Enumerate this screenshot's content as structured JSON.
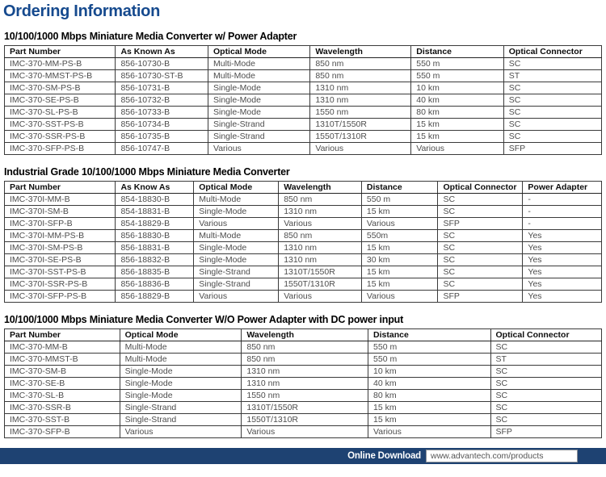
{
  "page": {
    "title": "Ordering Information",
    "accent_color": "#164a8e",
    "footer_bar_color": "#1e4272"
  },
  "tables": [
    {
      "heading": "10/100/1000 Mbps Miniature Media Converter w/ Power Adapter",
      "columns": [
        "Part Number",
        "As Known As",
        "Optical Mode",
        "Wavelength",
        "Distance",
        "Optical Connector"
      ],
      "rows": [
        [
          "IMC-370-MM-PS-B",
          "856-10730-B",
          "Multi-Mode",
          "850 nm",
          "550 m",
          "SC"
        ],
        [
          "IMC-370-MMST-PS-B",
          "856-10730-ST-B",
          "Multi-Mode",
          "850 nm",
          "550 m",
          "ST"
        ],
        [
          "IMC-370-SM-PS-B",
          "856-10731-B",
          "Single-Mode",
          "1310 nm",
          "10 km",
          "SC"
        ],
        [
          "IMC-370-SE-PS-B",
          "856-10732-B",
          "Single-Mode",
          "1310 nm",
          "40 km",
          "SC"
        ],
        [
          "IMC-370-SL-PS-B",
          "856-10733-B",
          "Single-Mode",
          "1550 nm",
          "80 km",
          "SC"
        ],
        [
          "IMC-370-SST-PS-B",
          "856-10734-B",
          "Single-Strand",
          "1310T/1550R",
          "15 km",
          "SC"
        ],
        [
          "IMC-370-SSR-PS-B",
          "856-10735-B",
          "Single-Strand",
          "1550T/1310R",
          "15 km",
          "SC"
        ],
        [
          "IMC-370-SFP-PS-B",
          "856-10747-B",
          "Various",
          "Various",
          "Various",
          "SFP"
        ]
      ]
    },
    {
      "heading": "Industrial Grade 10/100/1000 Mbps Miniature Media Converter",
      "columns": [
        "Part Number",
        "As Know As",
        "Optical Mode",
        "Wavelength",
        "Distance",
        "Optical Connector",
        "Power Adapter"
      ],
      "rows": [
        [
          "IMC-370I-MM-B",
          "854-18830-B",
          "Multi-Mode",
          "850 nm",
          "550 m",
          "SC",
          "-"
        ],
        [
          "IMC-370I-SM-B",
          "854-18831-B",
          "Single-Mode",
          "1310 nm",
          "15 km",
          "SC",
          "-"
        ],
        [
          "IMC-370I-SFP-B",
          "854-18829-B",
          "Various",
          "Various",
          "Various",
          "SFP",
          "-"
        ],
        [
          "IMC-370I-MM-PS-B",
          "856-18830-B",
          "Multi-Mode",
          "850 nm",
          "550m",
          "SC",
          "Yes"
        ],
        [
          "IMC-370I-SM-PS-B",
          "856-18831-B",
          "Single-Mode",
          "1310 nm",
          "15 km",
          "SC",
          "Yes"
        ],
        [
          "IMC-370I-SE-PS-B",
          "856-18832-B",
          "Single-Mode",
          "1310 nm",
          "30 km",
          "SC",
          "Yes"
        ],
        [
          "IMC-370I-SST-PS-B",
          "856-18835-B",
          "Single-Strand",
          "1310T/1550R",
          "15 km",
          "SC",
          "Yes"
        ],
        [
          "IMC-370I-SSR-PS-B",
          "856-18836-B",
          "Single-Strand",
          "1550T/1310R",
          "15 km",
          "SC",
          "Yes"
        ],
        [
          "IMC-370I-SFP-PS-B",
          "856-18829-B",
          "Various",
          "Various",
          "Various",
          "SFP",
          "Yes"
        ]
      ]
    },
    {
      "heading": "10/100/1000 Mbps Miniature Media Converter W/O Power Adapter with DC power input",
      "columns": [
        "Part Number",
        "Optical Mode",
        "Wavelength",
        "Distance",
        "Optical Connector"
      ],
      "rows": [
        [
          "IMC-370-MM-B",
          "Multi-Mode",
          "850 nm",
          "550 m",
          "SC"
        ],
        [
          "IMC-370-MMST-B",
          "Multi-Mode",
          "850 nm",
          "550 m",
          "ST"
        ],
        [
          "IMC-370-SM-B",
          "Single-Mode",
          "1310 nm",
          "10 km",
          "SC"
        ],
        [
          "IMC-370-SE-B",
          "Single-Mode",
          "1310 nm",
          "40 km",
          "SC"
        ],
        [
          "IMC-370-SL-B",
          "Single-Mode",
          "1550 nm",
          "80 km",
          "SC"
        ],
        [
          "IMC-370-SSR-B",
          "Single-Strand",
          "1310T/1550R",
          "15 km",
          "SC"
        ],
        [
          "IMC-370-SST-B",
          "Single-Strand",
          "1550T/1310R",
          "15 km",
          "SC"
        ],
        [
          "IMC-370-SFP-B",
          "Various",
          "Various",
          "Various",
          "SFP"
        ]
      ]
    }
  ],
  "footer": {
    "label": "Online Download",
    "url": "www.advantech.com/products"
  }
}
